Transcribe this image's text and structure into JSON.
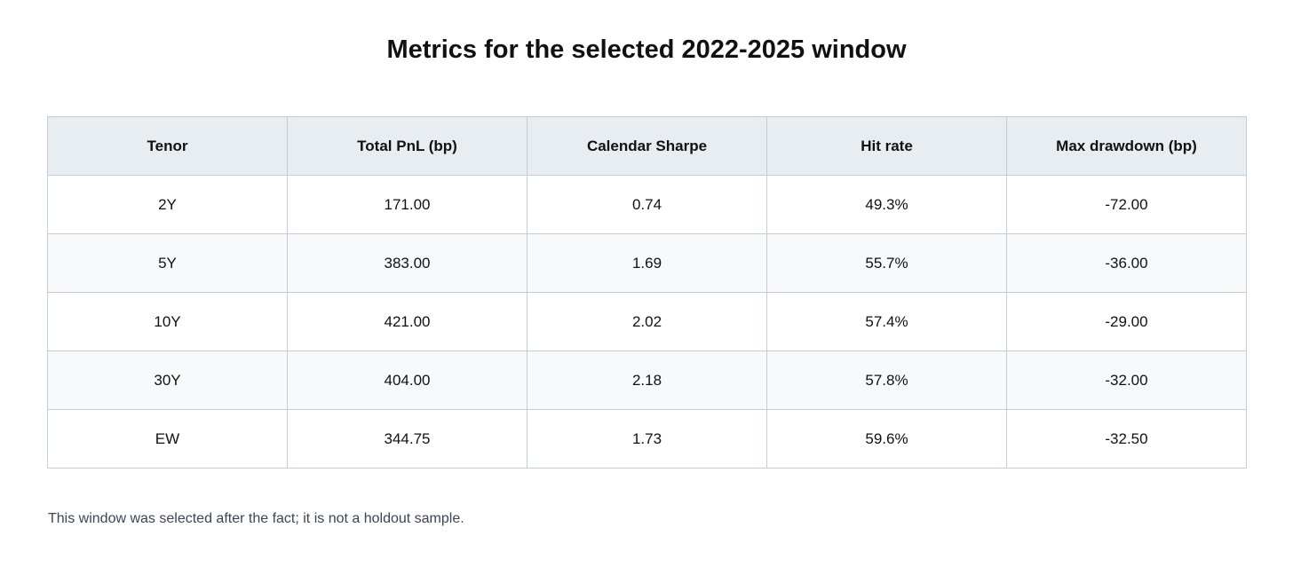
{
  "title": "Metrics for the selected 2022-2025 window",
  "table": {
    "columns": [
      "Tenor",
      "Total PnL (bp)",
      "Calendar Sharpe",
      "Hit rate",
      "Max drawdown (bp)"
    ],
    "rows": [
      [
        "2Y",
        "171.00",
        "0.74",
        "49.3%",
        "-72.00"
      ],
      [
        "5Y",
        "383.00",
        "1.69",
        "55.7%",
        "-36.00"
      ],
      [
        "10Y",
        "421.00",
        "2.02",
        "57.4%",
        "-29.00"
      ],
      [
        "30Y",
        "404.00",
        "2.18",
        "57.8%",
        "-32.00"
      ],
      [
        "EW",
        "344.75",
        "1.73",
        "59.6%",
        "-32.50"
      ]
    ]
  },
  "footnote": "This window was selected after the fact; it is not a holdout sample.",
  "colors": {
    "header_bg": "#e8edf2",
    "stripe_bg": "#f7f9fb",
    "border": "#c3ccd8",
    "footnote_text": "#3a4556"
  }
}
